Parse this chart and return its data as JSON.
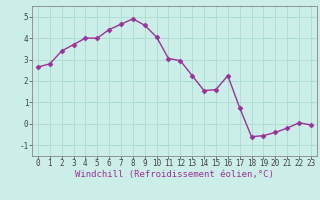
{
  "x": [
    0,
    1,
    2,
    3,
    4,
    5,
    6,
    7,
    8,
    9,
    10,
    11,
    12,
    13,
    14,
    15,
    16,
    17,
    18,
    19,
    20,
    21,
    22,
    23
  ],
  "y": [
    2.65,
    2.8,
    3.4,
    3.7,
    4.0,
    4.0,
    4.4,
    4.65,
    4.9,
    4.6,
    4.05,
    3.05,
    2.95,
    2.25,
    1.55,
    1.6,
    2.25,
    0.75,
    -0.6,
    -0.55,
    -0.4,
    -0.2,
    0.05,
    -0.05
  ],
  "line_color": "#993399",
  "marker": "D",
  "markersize": 2.5,
  "linewidth": 1.0,
  "bg_color": "#cceee8",
  "grid_color": "#aaddcc",
  "xlabel": "Windchill (Refroidissement éolien,°C)",
  "xlabel_fontsize": 6.5,
  "tick_fontsize": 5.5,
  "ylim": [
    -1.5,
    5.5
  ],
  "xlim": [
    -0.5,
    23.5
  ],
  "yticks": [
    -1,
    0,
    1,
    2,
    3,
    4,
    5
  ],
  "xticks": [
    0,
    1,
    2,
    3,
    4,
    5,
    6,
    7,
    8,
    9,
    10,
    11,
    12,
    13,
    14,
    15,
    16,
    17,
    18,
    19,
    20,
    21,
    22,
    23
  ]
}
